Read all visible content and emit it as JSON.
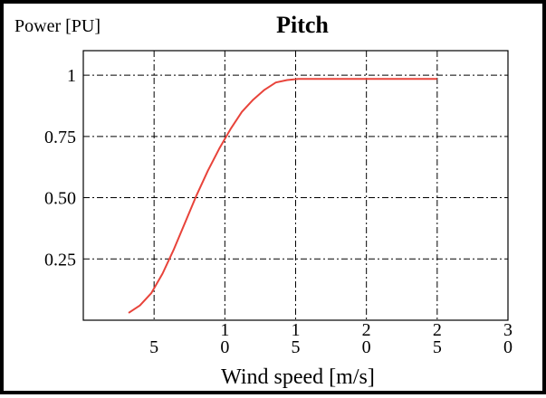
{
  "chart_data": {
    "type": "line",
    "title": "Pitch",
    "ylabel": "Power [PU]",
    "xlabel": "Wind speed [m/s]",
    "xlim": [
      0,
      30
    ],
    "ylim": [
      0,
      1.1
    ],
    "grid": true,
    "x_ticks": [
      {
        "value": 5,
        "label_lines": [
          "5"
        ]
      },
      {
        "value": 10,
        "label_lines": [
          "1",
          "0"
        ]
      },
      {
        "value": 15,
        "label_lines": [
          "1",
          "5"
        ]
      },
      {
        "value": 20,
        "label_lines": [
          "2",
          "0"
        ]
      },
      {
        "value": 25,
        "label_lines": [
          "2",
          "5"
        ]
      },
      {
        "value": 30,
        "label_lines": [
          "3",
          "0"
        ]
      }
    ],
    "y_ticks": [
      {
        "value": 0.25,
        "label": "0.25"
      },
      {
        "value": 0.5,
        "label": "0.50"
      },
      {
        "value": 0.75,
        "label": "0.75"
      },
      {
        "value": 1.0,
        "label": "1"
      }
    ],
    "series": [
      {
        "color": "#e8433a",
        "x": [
          3.2,
          4.0,
          4.8,
          5.6,
          6.4,
          7.2,
          8.0,
          8.8,
          9.6,
          10.4,
          11.2,
          12.0,
          12.8,
          13.6,
          14.4,
          15.2,
          16.0,
          20.0,
          25.0
        ],
        "y": [
          0.03,
          0.06,
          0.11,
          0.19,
          0.29,
          0.4,
          0.51,
          0.61,
          0.7,
          0.78,
          0.85,
          0.9,
          0.94,
          0.97,
          0.98,
          0.985,
          0.985,
          0.985,
          0.985
        ]
      }
    ]
  }
}
